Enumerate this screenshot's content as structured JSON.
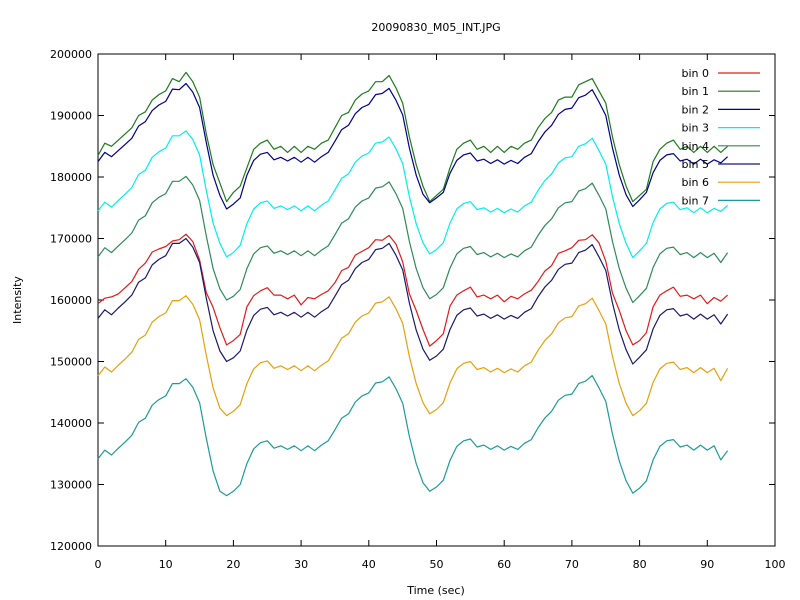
{
  "chart_data": {
    "type": "line",
    "title": "20090830_M05_INT.JPG",
    "xlabel": "Time (sec)",
    "ylabel": "Intensity",
    "xlim": [
      0,
      100
    ],
    "ylim": [
      120000,
      200000
    ],
    "xticks": [
      0,
      10,
      20,
      30,
      40,
      50,
      60,
      70,
      80,
      90,
      100
    ],
    "yticks": [
      120000,
      130000,
      140000,
      150000,
      160000,
      170000,
      180000,
      190000,
      200000
    ],
    "xtick_labels": [
      "0",
      "10",
      "20",
      "30",
      "40",
      "50",
      "60",
      "70",
      "80",
      "90",
      "100"
    ],
    "ytick_labels": [
      "120000",
      "130000",
      "140000",
      "150000",
      "160000",
      "170000",
      "180000",
      "190000",
      "200000"
    ],
    "grid": false,
    "legend_position": "top-right",
    "x": [
      0,
      1,
      2,
      3,
      4,
      5,
      6,
      7,
      8,
      9,
      10,
      11,
      12,
      13,
      14,
      15,
      16,
      17,
      18,
      19,
      20,
      21,
      22,
      23,
      24,
      25,
      26,
      27,
      28,
      29,
      30,
      31,
      32,
      33,
      34,
      35,
      36,
      37,
      38,
      39,
      40,
      41,
      42,
      43,
      44,
      45,
      46,
      47,
      48,
      49,
      50,
      51,
      52,
      53,
      54,
      55,
      56,
      57,
      58,
      59,
      60,
      61,
      62,
      63,
      64,
      65,
      66,
      67,
      68,
      69,
      70,
      71,
      72,
      73,
      74,
      75,
      76,
      77,
      78,
      79,
      80,
      81,
      82,
      83,
      84,
      85,
      86,
      87,
      88,
      89,
      90,
      91,
      92,
      93
    ],
    "series": [
      {
        "name": "bin 0",
        "color": "#e41a1c",
        "values": [
          159400,
          160300,
          160500,
          161000,
          162000,
          163000,
          165000,
          166000,
          167800,
          168300,
          168700,
          169600,
          169800,
          170700,
          169500,
          166500,
          161200,
          158800,
          155500,
          152700,
          153400,
          154400,
          158900,
          160700,
          161500,
          162000,
          160800,
          160800,
          160200,
          160800,
          159200,
          160400,
          160200,
          160900,
          161500,
          162800,
          164800,
          165300,
          167300,
          167900,
          168500,
          169800,
          169700,
          170500,
          169100,
          166200,
          161000,
          158300,
          155200,
          152500,
          153400,
          154500,
          159000,
          160800,
          161500,
          162100,
          160500,
          160800,
          160200,
          160800,
          159700,
          160600,
          160200,
          161000,
          161600,
          163000,
          164700,
          165600,
          167600,
          168000,
          168500,
          169700,
          169800,
          170600,
          169300,
          166300,
          161100,
          158300,
          155000,
          152700,
          153400,
          154700,
          158900,
          160800,
          161500,
          162100,
          160600,
          160800,
          160200,
          160800,
          159400,
          160400,
          159800,
          160800
        ]
      },
      {
        "name": "bin 1",
        "color": "#1e7b1e",
        "values": [
          183500,
          185500,
          185000,
          186000,
          187000,
          188000,
          190000,
          190600,
          192500,
          193400,
          194000,
          196000,
          195500,
          197000,
          195500,
          193000,
          187000,
          182000,
          179000,
          176000,
          177500,
          178500,
          181500,
          184500,
          185500,
          186000,
          184500,
          185000,
          184000,
          185000,
          184000,
          185000,
          184500,
          185500,
          186000,
          188000,
          190000,
          190500,
          192500,
          193500,
          194000,
          195500,
          195500,
          196500,
          194500,
          192000,
          186500,
          182000,
          178500,
          176000,
          177000,
          178000,
          181500,
          184500,
          185500,
          186000,
          184500,
          185000,
          184000,
          185000,
          184000,
          185000,
          184500,
          185500,
          186000,
          188000,
          189500,
          190500,
          192500,
          193000,
          193000,
          195000,
          195500,
          196000,
          194000,
          192000,
          186500,
          182000,
          178500,
          176000,
          177000,
          178000,
          182500,
          184500,
          185500,
          186000,
          184500,
          185000,
          184000,
          185000,
          184000,
          185000,
          184000,
          185000
        ]
      },
      {
        "name": "bin 2",
        "color": "#00008b",
        "values": [
          182500,
          184000,
          183300,
          184300,
          185300,
          186300,
          188300,
          189000,
          190800,
          191700,
          192300,
          194300,
          194200,
          195200,
          193800,
          191300,
          185600,
          180300,
          177000,
          174800,
          175600,
          176600,
          180300,
          182700,
          183700,
          184000,
          182800,
          183200,
          182600,
          183200,
          182400,
          183200,
          182400,
          183300,
          184000,
          185800,
          187700,
          188400,
          190300,
          191300,
          191800,
          193400,
          193600,
          194400,
          192500,
          190100,
          184700,
          180300,
          177200,
          175800,
          176600,
          177500,
          180600,
          182700,
          183600,
          183900,
          182600,
          182900,
          182200,
          182800,
          182100,
          182700,
          182200,
          183200,
          183800,
          185700,
          187300,
          188400,
          190200,
          191000,
          191200,
          192900,
          193300,
          194200,
          192200,
          190000,
          184700,
          180300,
          177100,
          175200,
          176300,
          177500,
          180700,
          182700,
          183600,
          183800,
          182600,
          182900,
          182100,
          182900,
          182100,
          182800,
          182300,
          183300
        ]
      },
      {
        "name": "bin 3",
        "color": "#00eeee",
        "values": [
          174500,
          175900,
          175100,
          176200,
          177200,
          178300,
          180400,
          181100,
          183200,
          184100,
          184700,
          186700,
          186700,
          187500,
          186100,
          183600,
          177800,
          172500,
          169200,
          167000,
          167700,
          168900,
          172400,
          174800,
          175800,
          176100,
          174900,
          175300,
          174700,
          175300,
          174500,
          175300,
          174500,
          175400,
          176100,
          177900,
          179800,
          180500,
          182400,
          183400,
          183900,
          185500,
          185700,
          186500,
          184600,
          182200,
          176800,
          172400,
          169300,
          167500,
          168200,
          169300,
          172500,
          174800,
          175700,
          176000,
          174700,
          175000,
          174300,
          174900,
          174200,
          174800,
          174300,
          175300,
          175900,
          177800,
          179400,
          180500,
          182300,
          183100,
          183300,
          185000,
          185400,
          186300,
          184300,
          182100,
          176800,
          172400,
          169200,
          166900,
          168000,
          169200,
          172600,
          174800,
          175700,
          175900,
          174700,
          175000,
          174200,
          175000,
          174200,
          174900,
          174400,
          175400
        ]
      },
      {
        "name": "bin 4",
        "color": "#2e8b57",
        "values": [
          167000,
          168500,
          167700,
          168800,
          169800,
          170900,
          173000,
          173700,
          175800,
          176700,
          177300,
          179300,
          179300,
          180100,
          178700,
          176200,
          170400,
          165100,
          161800,
          160000,
          160600,
          161700,
          165100,
          167500,
          168500,
          168800,
          167600,
          168000,
          167400,
          168000,
          167200,
          168000,
          167200,
          168100,
          168800,
          170600,
          172500,
          173200,
          175100,
          176100,
          176600,
          178200,
          178400,
          179200,
          177300,
          174900,
          169500,
          165100,
          162000,
          160200,
          160900,
          162000,
          165200,
          167500,
          168400,
          168700,
          167400,
          167700,
          167000,
          167600,
          166900,
          167500,
          167000,
          168000,
          168600,
          170500,
          172100,
          173200,
          175000,
          175800,
          176000,
          177700,
          178100,
          179000,
          177000,
          174800,
          169500,
          165100,
          161900,
          159600,
          160700,
          161900,
          165300,
          167500,
          168400,
          168600,
          167400,
          167700,
          166900,
          167700,
          166900,
          167600,
          166100,
          167700
        ]
      },
      {
        "name": "bin 5",
        "color": "#191970",
        "values": [
          157000,
          158400,
          157600,
          158700,
          159700,
          160800,
          162900,
          163600,
          165700,
          166600,
          167200,
          169200,
          169200,
          170000,
          168600,
          166100,
          160300,
          155000,
          151700,
          150000,
          150600,
          151700,
          155100,
          157500,
          158500,
          158800,
          157600,
          158000,
          157400,
          158000,
          157200,
          158000,
          157200,
          158100,
          158800,
          160600,
          162500,
          163200,
          165100,
          166100,
          166600,
          168200,
          168400,
          169200,
          167300,
          164900,
          159500,
          155100,
          152000,
          150200,
          150900,
          152000,
          155200,
          157500,
          158400,
          158700,
          157400,
          157700,
          157000,
          157600,
          156900,
          157500,
          157000,
          158000,
          158600,
          160500,
          162100,
          163200,
          165000,
          165800,
          166000,
          167700,
          168100,
          169000,
          167000,
          164800,
          159500,
          155100,
          151900,
          149600,
          150700,
          151900,
          155300,
          157500,
          158400,
          158600,
          157400,
          157700,
          156900,
          157700,
          156900,
          157600,
          156100,
          157700
        ]
      },
      {
        "name": "bin 6",
        "color": "#e8a00b",
        "values": [
          147700,
          149100,
          148300,
          149400,
          150400,
          151500,
          153600,
          154300,
          156400,
          157300,
          157900,
          159900,
          159900,
          160700,
          159300,
          156800,
          151000,
          145700,
          142400,
          141200,
          141900,
          143000,
          146400,
          148800,
          149800,
          150100,
          148900,
          149300,
          148700,
          149300,
          148500,
          149300,
          148500,
          149400,
          150100,
          151900,
          153800,
          154500,
          156400,
          157400,
          157900,
          159500,
          159700,
          160500,
          158600,
          156200,
          150800,
          146400,
          143300,
          141500,
          142200,
          143300,
          146500,
          148800,
          149700,
          150000,
          148700,
          149000,
          148300,
          148900,
          148200,
          148800,
          148300,
          149300,
          149900,
          151800,
          153400,
          154500,
          156300,
          157100,
          157300,
          159000,
          159400,
          160300,
          158300,
          156100,
          150800,
          146400,
          143200,
          141200,
          142000,
          143200,
          146600,
          148800,
          149700,
          149900,
          148700,
          149000,
          148200,
          149000,
          148200,
          148900,
          146900,
          148900
        ]
      },
      {
        "name": "bin 7",
        "color": "#1e9a9a",
        "values": [
          134200,
          135600,
          134800,
          135900,
          136900,
          138000,
          140100,
          140800,
          142900,
          143800,
          144400,
          146400,
          146400,
          147200,
          145800,
          143300,
          137500,
          132200,
          128900,
          128200,
          128900,
          130000,
          133400,
          135800,
          136800,
          137100,
          135900,
          136300,
          135700,
          136300,
          135500,
          136300,
          135500,
          136400,
          137100,
          138900,
          140800,
          141500,
          143400,
          144400,
          144900,
          146500,
          146700,
          147500,
          145600,
          143200,
          137800,
          133400,
          130300,
          128900,
          129600,
          130700,
          133900,
          136200,
          137100,
          137400,
          136100,
          136400,
          135700,
          136300,
          135600,
          136200,
          135700,
          136700,
          137300,
          139200,
          140800,
          141900,
          143700,
          144500,
          144700,
          146400,
          146800,
          147700,
          145700,
          143500,
          138200,
          133800,
          130600,
          128600,
          129400,
          130600,
          134000,
          136200,
          137100,
          137300,
          136100,
          136400,
          135600,
          136400,
          135600,
          136300,
          134000,
          135500
        ]
      }
    ]
  }
}
